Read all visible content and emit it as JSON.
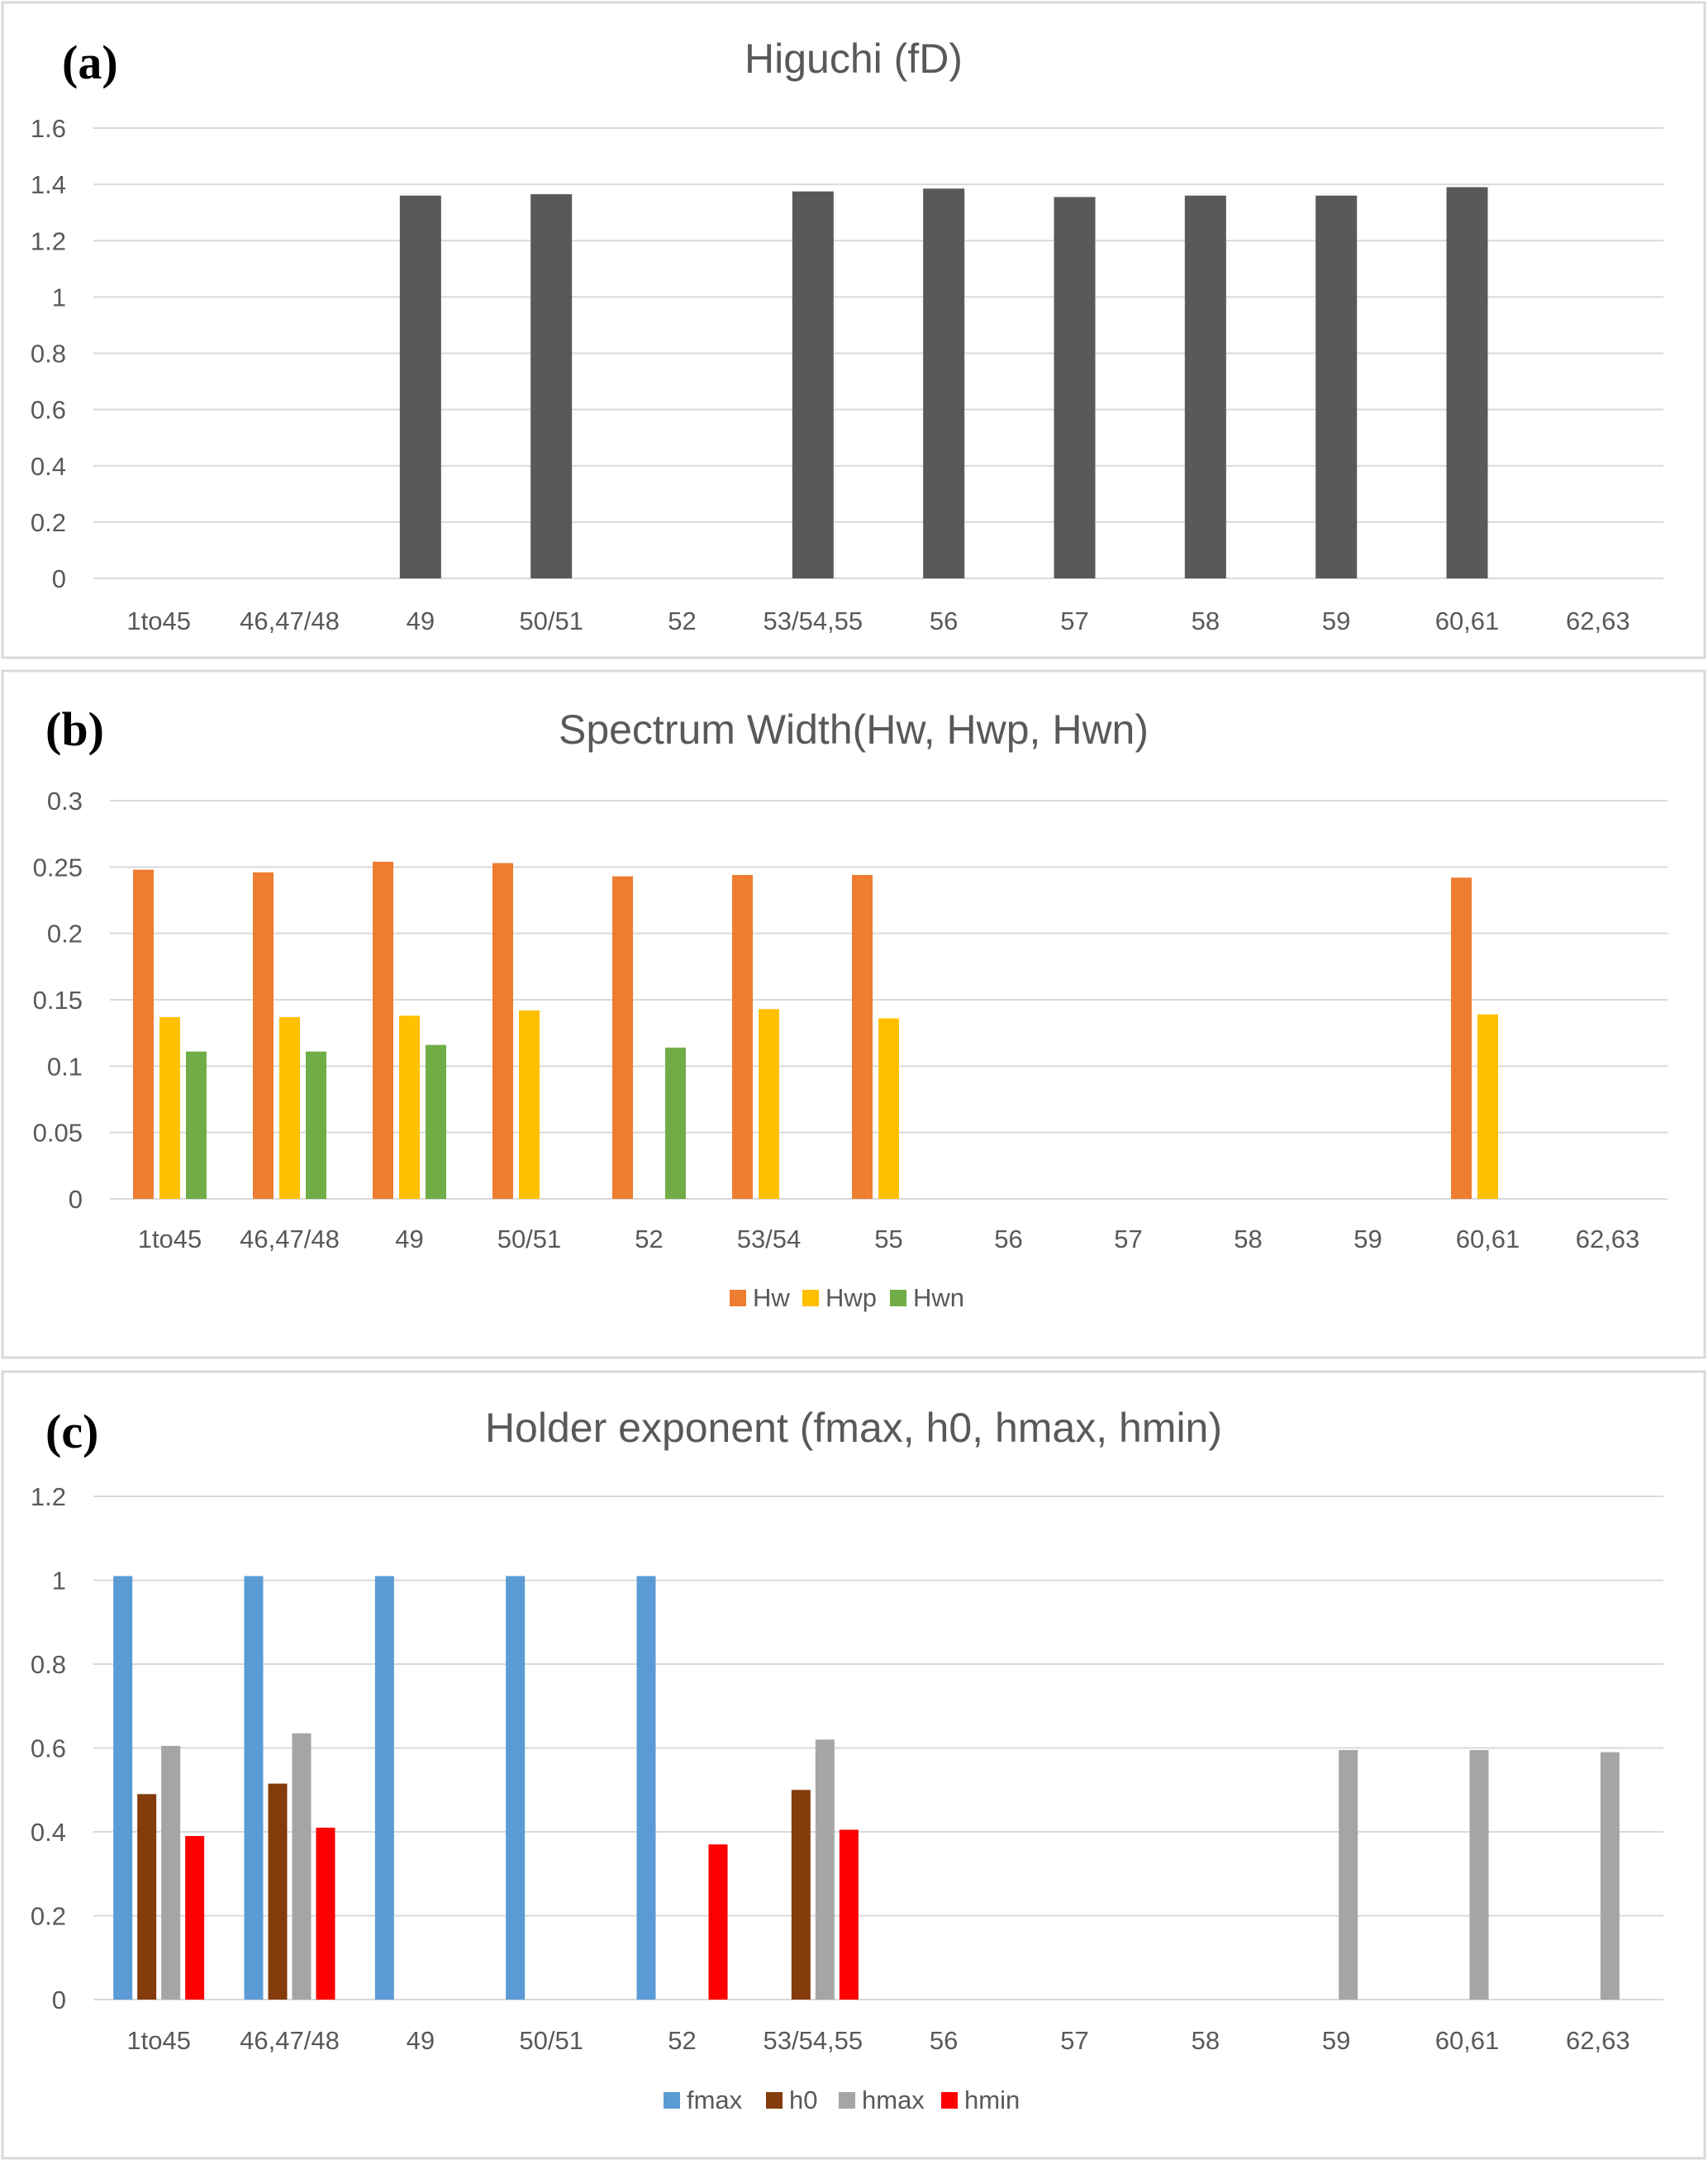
{
  "chart_data": [
    {
      "type": "bar",
      "panel_label": "(a)",
      "title": "Higuchi (fD)",
      "xlabel": "",
      "ylabel": "",
      "ylim": [
        0,
        1.6
      ],
      "yticks": [
        "0",
        "0.2",
        "0.4",
        "0.6",
        "0.8",
        "1",
        "1.2",
        "1.4",
        "1.6"
      ],
      "grid": true,
      "legend": "none",
      "categories": [
        "1to45",
        "46,47/48",
        "49",
        "50/51",
        "52",
        "53/54,55",
        "56",
        "57",
        "58",
        "59",
        "60,61",
        "62,63"
      ],
      "series": [
        {
          "name": "fD",
          "color": "#595959",
          "values": [
            null,
            null,
            1.36,
            1.365,
            null,
            1.375,
            1.385,
            1.355,
            1.36,
            1.36,
            1.39,
            null
          ]
        }
      ]
    },
    {
      "type": "bar",
      "panel_label": "(b)",
      "title": "Spectrum Width(Hw, Hwp, Hwn)",
      "xlabel": "",
      "ylabel": "",
      "ylim": [
        0,
        0.3
      ],
      "yticks": [
        "0",
        "0.05",
        "0.1",
        "0.15",
        "0.2",
        "0.25",
        "0.3"
      ],
      "grid": true,
      "legend": "bottom",
      "categories": [
        "1to45",
        "46,47/48",
        "49",
        "50/51",
        "52",
        "53/54",
        "55",
        "56",
        "57",
        "58",
        "59",
        "60,61",
        "62,63"
      ],
      "series": [
        {
          "name": "Hw",
          "color": "#ED7D31",
          "values": [
            0.248,
            0.246,
            0.254,
            0.253,
            0.243,
            0.244,
            0.244,
            null,
            null,
            null,
            null,
            0.242,
            null
          ]
        },
        {
          "name": "Hwp",
          "color": "#FFC000",
          "values": [
            0.137,
            0.137,
            0.138,
            0.142,
            null,
            0.143,
            0.136,
            null,
            null,
            null,
            null,
            0.139,
            null
          ]
        },
        {
          "name": "Hwn",
          "color": "#70AD47",
          "values": [
            0.111,
            0.111,
            0.116,
            null,
            0.114,
            null,
            null,
            null,
            null,
            null,
            null,
            null,
            null
          ]
        }
      ]
    },
    {
      "type": "bar",
      "panel_label": "(c)",
      "title": "Holder exponent (fmax, h0, hmax, hmin)",
      "xlabel": "",
      "ylabel": "",
      "ylim": [
        0,
        1.2
      ],
      "yticks": [
        "0",
        "0.2",
        "0.4",
        "0.6",
        "0.8",
        "1",
        "1.2"
      ],
      "grid": true,
      "legend": "bottom",
      "categories": [
        "1to45",
        "46,47/48",
        "49",
        "50/51",
        "52",
        "53/54,55",
        "56",
        "57",
        "58",
        "59",
        "60,61",
        "62,63"
      ],
      "series": [
        {
          "name": "fmax",
          "color": "#5B9BD5",
          "values": [
            1.01,
            1.01,
            1.01,
            1.01,
            1.01,
            null,
            null,
            null,
            null,
            null,
            null,
            null
          ]
        },
        {
          "name": "h0",
          "color": "#843C0C",
          "values": [
            0.49,
            0.515,
            null,
            null,
            null,
            0.5,
            null,
            null,
            null,
            null,
            null,
            null
          ]
        },
        {
          "name": "hmax",
          "color": "#A5A5A5",
          "values": [
            0.605,
            0.635,
            null,
            null,
            null,
            0.62,
            null,
            null,
            null,
            0.595,
            0.595,
            0.59
          ]
        },
        {
          "name": "hmin",
          "color": "#FF0000",
          "values": [
            0.39,
            0.41,
            null,
            null,
            0.37,
            0.405,
            null,
            null,
            null,
            null,
            null,
            null
          ]
        }
      ]
    }
  ]
}
